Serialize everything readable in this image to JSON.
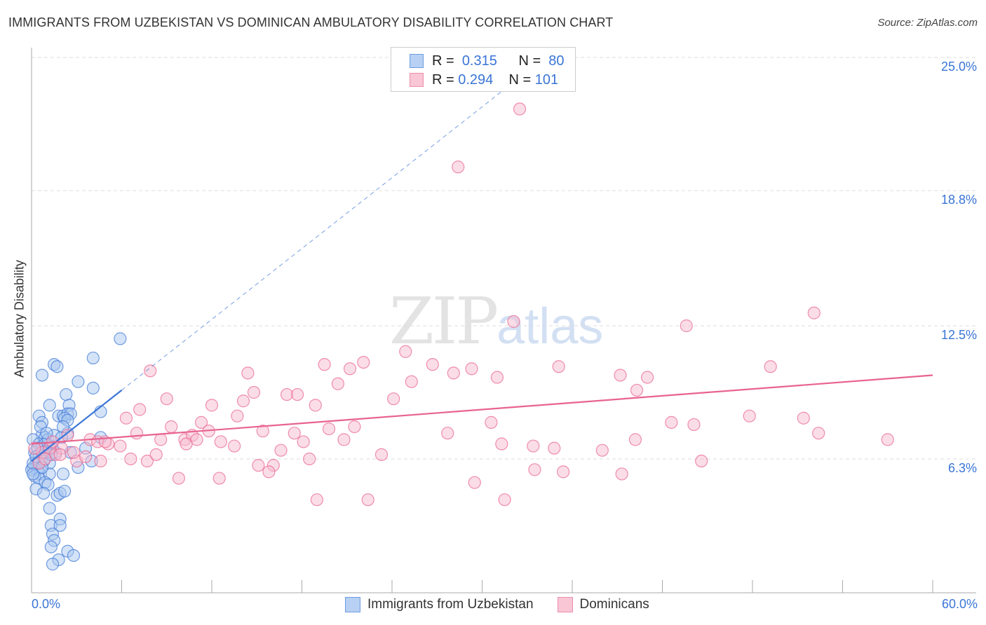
{
  "chart_data": {
    "type": "scatter",
    "title": "IMMIGRANTS FROM UZBEKISTAN VS DOMINICAN AMBULATORY DISABILITY CORRELATION CHART",
    "source": "Source: ZipAtlas.com",
    "xlabel": "",
    "ylabel": "Ambulatory Disability",
    "xlim": [
      0,
      60
    ],
    "ylim": [
      0,
      25
    ],
    "x_tick_labels": [
      "0.0%",
      "60.0%"
    ],
    "y_ticks": [
      6.3,
      12.5,
      18.8,
      25.0
    ],
    "y_tick_labels": [
      "6.3%",
      "12.5%",
      "18.8%",
      "25.0%"
    ],
    "grid": true,
    "legend": {
      "placement": "top-center",
      "entries": [
        {
          "r_label": "R =",
          "r": "0.315",
          "n_label": "N =",
          "n": "80"
        },
        {
          "r_label": "R =",
          "r": "0.294",
          "n_label": "N =",
          "n": "101"
        }
      ]
    },
    "series": [
      {
        "name": "Immigrants from Uzbekistan",
        "color": "#3a75d6",
        "fill": "#a9c7f0",
        "trend": {
          "intercept": 6.2,
          "slope": 0.55,
          "solid_to": 6,
          "dashed_to": 34
        },
        "points": [
          [
            5.9,
            11.9
          ],
          [
            4.1,
            11.0
          ],
          [
            1.5,
            10.7
          ],
          [
            1.7,
            10.6
          ],
          [
            0.7,
            10.2
          ],
          [
            3.1,
            9.9
          ],
          [
            4.1,
            9.6
          ],
          [
            2.3,
            9.3
          ],
          [
            1.2,
            8.8
          ],
          [
            2.5,
            8.8
          ],
          [
            4.6,
            8.5
          ],
          [
            0.5,
            8.3
          ],
          [
            0.7,
            8.0
          ],
          [
            1.8,
            8.3
          ],
          [
            2.1,
            8.3
          ],
          [
            2.4,
            8.4
          ],
          [
            2.6,
            8.4
          ],
          [
            2.2,
            8.2
          ],
          [
            2.4,
            8.1
          ],
          [
            0.7,
            7.4
          ],
          [
            4.6,
            7.3
          ],
          [
            0.9,
            7.3
          ],
          [
            2.4,
            7.5
          ],
          [
            0.1,
            7.2
          ],
          [
            0.5,
            7.0
          ],
          [
            0.7,
            6.8
          ],
          [
            0.9,
            7.0
          ],
          [
            1.3,
            6.9
          ],
          [
            1.6,
            6.6
          ],
          [
            2.6,
            6.6
          ],
          [
            1.0,
            6.6
          ],
          [
            0.2,
            6.6
          ],
          [
            0.5,
            6.5
          ],
          [
            0.7,
            6.3
          ],
          [
            0.3,
            6.1
          ],
          [
            1.2,
            6.1
          ],
          [
            4.0,
            6.2
          ],
          [
            3.1,
            5.9
          ],
          [
            0.1,
            5.9
          ],
          [
            0.4,
            5.8
          ],
          [
            0.6,
            5.6
          ],
          [
            0.0,
            5.8
          ],
          [
            0.2,
            5.5
          ],
          [
            0.5,
            5.4
          ],
          [
            1.2,
            5.6
          ],
          [
            2.1,
            5.6
          ],
          [
            0.9,
            5.2
          ],
          [
            1.1,
            5.1
          ],
          [
            0.3,
            4.9
          ],
          [
            0.8,
            4.7
          ],
          [
            1.7,
            4.6
          ],
          [
            1.9,
            4.7
          ],
          [
            2.2,
            4.8
          ],
          [
            1.2,
            4.0
          ],
          [
            1.9,
            3.5
          ],
          [
            1.3,
            3.2
          ],
          [
            1.9,
            3.2
          ],
          [
            1.4,
            2.8
          ],
          [
            1.5,
            2.5
          ],
          [
            1.3,
            2.2
          ],
          [
            2.4,
            2.0
          ],
          [
            1.8,
            1.6
          ],
          [
            2.8,
            1.8
          ],
          [
            1.4,
            1.4
          ],
          [
            0.1,
            6.1
          ],
          [
            0.8,
            6.6
          ],
          [
            1.4,
            6.8
          ],
          [
            1.1,
            7.2
          ],
          [
            1.5,
            7.4
          ],
          [
            3.6,
            6.8
          ],
          [
            0.6,
            7.8
          ],
          [
            1.0,
            7.5
          ],
          [
            0.4,
            6.8
          ],
          [
            0.8,
            6.2
          ],
          [
            0.1,
            5.6
          ],
          [
            0.7,
            5.9
          ],
          [
            1.3,
            6.5
          ],
          [
            2.0,
            7.3
          ],
          [
            2.1,
            7.8
          ],
          [
            0.3,
            6.4
          ]
        ]
      },
      {
        "name": "Dominicans",
        "color": "#e8638f",
        "fill": "#f7bccf",
        "trend": {
          "intercept": 7.0,
          "slope": 0.0533,
          "solid_to": 60
        },
        "points": [
          [
            32.5,
            22.6
          ],
          [
            28.4,
            19.9
          ],
          [
            52.1,
            13.1
          ],
          [
            43.6,
            12.5
          ],
          [
            32.1,
            12.7
          ],
          [
            24.9,
            11.3
          ],
          [
            19.5,
            10.7
          ],
          [
            22.1,
            10.8
          ],
          [
            21.2,
            10.5
          ],
          [
            26.7,
            10.7
          ],
          [
            29.3,
            10.5
          ],
          [
            28.1,
            10.3
          ],
          [
            35.1,
            10.6
          ],
          [
            49.2,
            10.6
          ],
          [
            39.2,
            10.2
          ],
          [
            41.0,
            10.1
          ],
          [
            31.0,
            10.1
          ],
          [
            14.4,
            10.3
          ],
          [
            7.9,
            10.4
          ],
          [
            20.4,
            9.8
          ],
          [
            25.3,
            9.9
          ],
          [
            40.3,
            9.5
          ],
          [
            9.0,
            9.1
          ],
          [
            14.8,
            9.4
          ],
          [
            17.0,
            9.3
          ],
          [
            17.7,
            9.3
          ],
          [
            24.1,
            9.1
          ],
          [
            18.9,
            8.8
          ],
          [
            12.0,
            8.8
          ],
          [
            14.1,
            9.0
          ],
          [
            7.2,
            8.6
          ],
          [
            6.3,
            8.2
          ],
          [
            47.8,
            8.3
          ],
          [
            51.4,
            8.2
          ],
          [
            30.6,
            8.0
          ],
          [
            42.6,
            8.0
          ],
          [
            44.1,
            7.9
          ],
          [
            9.3,
            7.8
          ],
          [
            11.3,
            8.0
          ],
          [
            13.7,
            8.3
          ],
          [
            15.4,
            7.6
          ],
          [
            17.5,
            7.5
          ],
          [
            19.8,
            7.7
          ],
          [
            21.5,
            7.8
          ],
          [
            27.7,
            7.5
          ],
          [
            52.4,
            7.5
          ],
          [
            57.0,
            7.2
          ],
          [
            7.0,
            7.5
          ],
          [
            8.6,
            7.2
          ],
          [
            10.2,
            7.2
          ],
          [
            10.7,
            7.4
          ],
          [
            11.8,
            7.6
          ],
          [
            12.6,
            7.1
          ],
          [
            13.5,
            6.9
          ],
          [
            11.0,
            7.2
          ],
          [
            18.1,
            7.1
          ],
          [
            20.8,
            7.2
          ],
          [
            31.3,
            7.0
          ],
          [
            33.4,
            6.9
          ],
          [
            34.8,
            6.8
          ],
          [
            38.0,
            6.7
          ],
          [
            40.2,
            7.2
          ],
          [
            3.9,
            7.2
          ],
          [
            5.1,
            7.0
          ],
          [
            5.9,
            6.9
          ],
          [
            4.4,
            7.1
          ],
          [
            2.4,
            7.4
          ],
          [
            6.6,
            6.3
          ],
          [
            7.7,
            6.2
          ],
          [
            8.3,
            6.5
          ],
          [
            10.3,
            7.0
          ],
          [
            16.6,
            6.7
          ],
          [
            18.5,
            6.3
          ],
          [
            23.3,
            6.5
          ],
          [
            15.1,
            6.0
          ],
          [
            16.1,
            6.0
          ],
          [
            15.8,
            5.7
          ],
          [
            33.5,
            5.8
          ],
          [
            35.4,
            5.7
          ],
          [
            39.3,
            5.6
          ],
          [
            44.6,
            6.2
          ],
          [
            9.8,
            5.4
          ],
          [
            12.5,
            5.4
          ],
          [
            29.5,
            5.2
          ],
          [
            19.0,
            4.4
          ],
          [
            22.4,
            4.4
          ],
          [
            31.5,
            4.4
          ],
          [
            3.0,
            6.2
          ],
          [
            3.6,
            6.4
          ],
          [
            4.6,
            6.2
          ],
          [
            0.7,
            6.6
          ],
          [
            1.2,
            6.8
          ],
          [
            1.6,
            6.5
          ],
          [
            2.0,
            6.8
          ],
          [
            0.5,
            6.1
          ],
          [
            0.9,
            6.3
          ],
          [
            1.4,
            7.1
          ],
          [
            1.9,
            6.5
          ],
          [
            0.2,
            6.8
          ],
          [
            2.8,
            6.6
          ],
          [
            4.9,
            7.1
          ]
        ]
      }
    ]
  },
  "watermark": {
    "zip": "ZIP",
    "atlas": "atlas"
  }
}
